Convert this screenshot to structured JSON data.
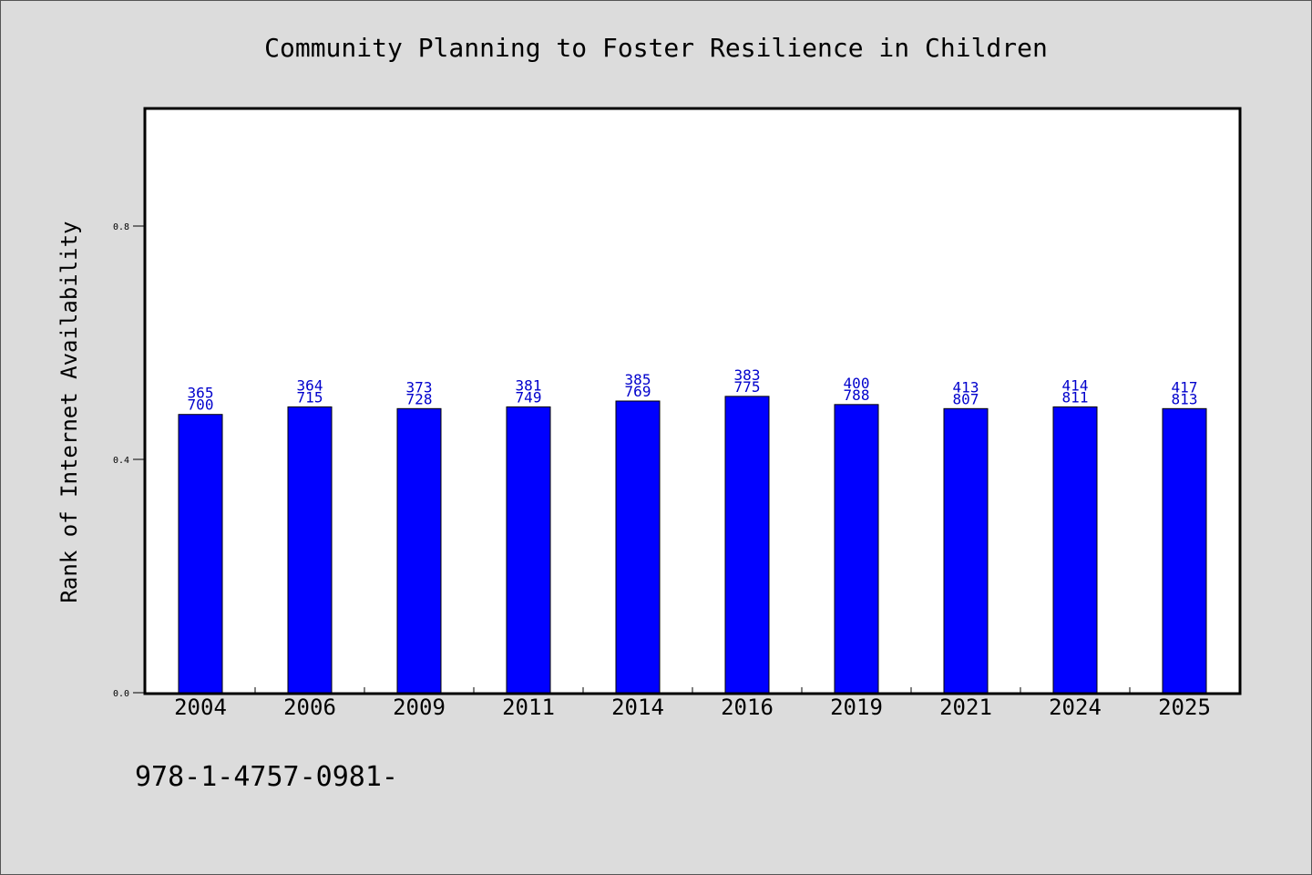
{
  "chart_data": {
    "type": "bar",
    "title": "Community Planning to Foster Resilience in Children",
    "xlabel": "",
    "ylabel": "Rank of Internet Availability",
    "categories": [
      "2004",
      "2006",
      "2009",
      "2011",
      "2014",
      "2016",
      "2019",
      "2021",
      "2024",
      "2025"
    ],
    "values": [
      0.477,
      0.49,
      0.487,
      0.49,
      0.5,
      0.508,
      0.494,
      0.487,
      0.49,
      0.487
    ],
    "data_labels_top": [
      "365",
      "364",
      "373",
      "381",
      "385",
      "383",
      "400",
      "413",
      "414",
      "417"
    ],
    "data_labels_bottom": [
      "700",
      "715",
      "728",
      "749",
      "769",
      "775",
      "788",
      "807",
      "811",
      "813"
    ],
    "ylim": [
      0,
      1.0
    ],
    "yticks": [
      "0.0",
      "0.4",
      "0.8"
    ],
    "grid": false,
    "bar_color": "#0000ff",
    "label_color": "#0000cc"
  },
  "footnote": "978-1-4757-0981-"
}
